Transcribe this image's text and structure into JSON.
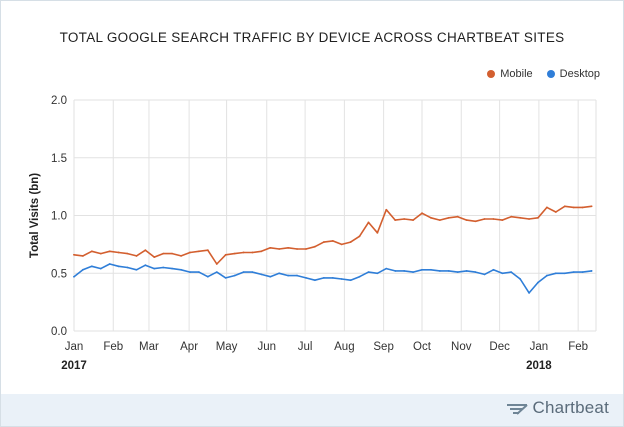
{
  "chart_data": {
    "type": "line",
    "title": "TOTAL GOOGLE SEARCH TRAFFIC BY DEVICE ACROSS CHARTBEAT SITES",
    "ylabel": "Total Visits (bn)",
    "xlabel": "",
    "ylim": [
      0,
      2.0
    ],
    "yticks": [
      "0.0",
      "0.5",
      "1.0",
      "1.5",
      "2.0"
    ],
    "ytick_values": [
      0,
      0.5,
      1.0,
      1.5,
      2.0
    ],
    "month_labels": [
      "Jan",
      "Feb",
      "Mar",
      "Apr",
      "May",
      "Jun",
      "Jul",
      "Aug",
      "Sep",
      "Oct",
      "Nov",
      "Dec",
      "Jan",
      "Feb"
    ],
    "year_labels": [
      {
        "label": "2017",
        "month_index": 0
      },
      {
        "label": "2018",
        "month_index": 12
      }
    ],
    "legend_position": "top-right",
    "grid": true,
    "x_unit": "weeks since Jan 1 2017",
    "x_month_starts": [
      0,
      4.4,
      8.4,
      12.9,
      17.1,
      21.6,
      25.9,
      30.3,
      34.7,
      39.0,
      43.4,
      47.7,
      52.1,
      56.5
    ],
    "x_range": [
      0,
      58.5
    ],
    "series": [
      {
        "name": "Mobile",
        "color": "#d35f2f",
        "x": [
          0,
          1,
          2,
          3,
          4,
          5,
          6,
          7,
          8,
          9,
          10,
          11,
          12,
          13,
          14,
          15,
          16,
          17,
          18,
          19,
          20,
          21,
          22,
          23,
          24,
          25,
          26,
          27,
          28,
          29,
          30,
          31,
          32,
          33,
          34,
          35,
          36,
          37,
          38,
          39,
          40,
          41,
          42,
          43,
          44,
          45,
          46,
          47,
          48,
          49,
          50,
          51,
          52,
          53,
          54,
          55,
          56,
          57,
          58
        ],
        "values": [
          0.66,
          0.65,
          0.69,
          0.67,
          0.69,
          0.68,
          0.67,
          0.65,
          0.7,
          0.64,
          0.67,
          0.67,
          0.65,
          0.68,
          0.69,
          0.7,
          0.58,
          0.66,
          0.67,
          0.68,
          0.68,
          0.69,
          0.72,
          0.71,
          0.72,
          0.71,
          0.71,
          0.73,
          0.77,
          0.78,
          0.75,
          0.77,
          0.82,
          0.94,
          0.85,
          1.05,
          0.96,
          0.97,
          0.96,
          1.02,
          0.98,
          0.96,
          0.98,
          0.99,
          0.96,
          0.95,
          0.97,
          0.97,
          0.96,
          0.99,
          0.98,
          0.97,
          0.98,
          1.07,
          1.03,
          1.08,
          1.07,
          1.07,
          1.08
        ]
      },
      {
        "name": "Desktop",
        "color": "#2f7ed8",
        "x": [
          0,
          1,
          2,
          3,
          4,
          5,
          6,
          7,
          8,
          9,
          10,
          11,
          12,
          13,
          14,
          15,
          16,
          17,
          18,
          19,
          20,
          21,
          22,
          23,
          24,
          25,
          26,
          27,
          28,
          29,
          30,
          31,
          32,
          33,
          34,
          35,
          36,
          37,
          38,
          39,
          40,
          41,
          42,
          43,
          44,
          45,
          46,
          47,
          48,
          49,
          50,
          51,
          52,
          53,
          54,
          55,
          56,
          57,
          58
        ],
        "values": [
          0.47,
          0.53,
          0.56,
          0.54,
          0.58,
          0.56,
          0.55,
          0.53,
          0.57,
          0.54,
          0.55,
          0.54,
          0.53,
          0.51,
          0.51,
          0.47,
          0.51,
          0.46,
          0.48,
          0.51,
          0.51,
          0.49,
          0.47,
          0.5,
          0.48,
          0.48,
          0.46,
          0.44,
          0.46,
          0.46,
          0.45,
          0.44,
          0.47,
          0.51,
          0.5,
          0.54,
          0.52,
          0.52,
          0.51,
          0.53,
          0.53,
          0.52,
          0.52,
          0.51,
          0.52,
          0.51,
          0.49,
          0.53,
          0.5,
          0.51,
          0.45,
          0.33,
          0.42,
          0.48,
          0.5,
          0.5,
          0.51,
          0.51,
          0.52
        ]
      }
    ]
  },
  "branding": {
    "logo_text": "Chartbeat"
  },
  "colors": {
    "grid": "#e2e2e2",
    "axis_text": "#333333",
    "footer_bg": "#eaf1f8"
  }
}
